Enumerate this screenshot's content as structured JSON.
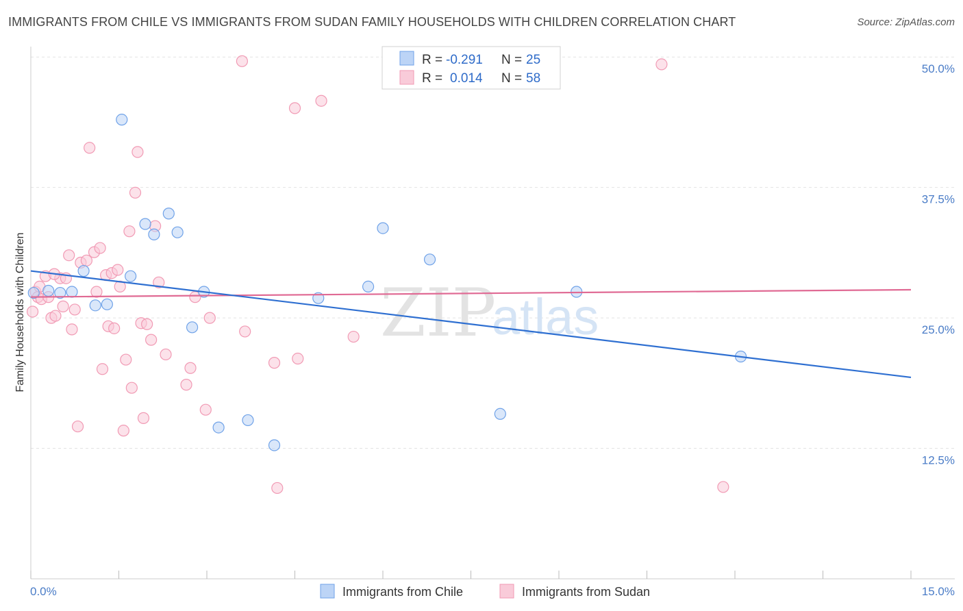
{
  "header": {
    "title": "IMMIGRANTS FROM CHILE VS IMMIGRANTS FROM SUDAN FAMILY HOUSEHOLDS WITH CHILDREN CORRELATION CHART",
    "source": "Source: ZipAtlas.com"
  },
  "watermark": {
    "zip": "ZIP",
    "atlas": "atlas"
  },
  "chart_data": {
    "type": "scatter",
    "title": "IMMIGRANTS FROM CHILE VS IMMIGRANTS FROM SUDAN FAMILY HOUSEHOLDS WITH CHILDREN CORRELATION CHART",
    "xlabel": "",
    "ylabel": "Family Households with Children",
    "xlim": [
      0,
      15
    ],
    "ylim": [
      0,
      51
    ],
    "x_tick_labels": [
      "0.0%",
      "15.0%"
    ],
    "y_ticks": [
      12.5,
      25.0,
      37.5,
      50.0
    ],
    "y_tick_labels": [
      "12.5%",
      "25.0%",
      "37.5%",
      "50.0%"
    ],
    "grid": "horizontal dashed",
    "legend_position": "top-center",
    "colors": {
      "chile": "#6fa2e8",
      "sudan": "#f19ab4",
      "chile_line": "#2e6fd1",
      "sudan_line": "#e06a94"
    },
    "stats": [
      {
        "r_label": "R = ",
        "r": "-0.291",
        "n_label": "N = ",
        "n": "25"
      },
      {
        "r_label": "R = ",
        "r": "0.014",
        "n_label": "N = ",
        "n": "58"
      }
    ],
    "series": [
      {
        "name": "Immigrants from Chile",
        "trend": {
          "x": [
            0,
            15
          ],
          "y": [
            29.5,
            19.3
          ]
        },
        "points": [
          [
            0.05,
            27.4
          ],
          [
            0.3,
            27.6
          ],
          [
            0.5,
            27.4
          ],
          [
            0.7,
            27.5
          ],
          [
            0.9,
            29.5
          ],
          [
            1.1,
            26.2
          ],
          [
            1.3,
            26.3
          ],
          [
            1.55,
            44.0
          ],
          [
            1.7,
            29.0
          ],
          [
            1.95,
            34.0
          ],
          [
            2.1,
            33.0
          ],
          [
            2.35,
            35.0
          ],
          [
            2.5,
            33.2
          ],
          [
            2.75,
            24.1
          ],
          [
            2.95,
            27.5
          ],
          [
            3.2,
            14.5
          ],
          [
            3.7,
            15.2
          ],
          [
            4.15,
            12.8
          ],
          [
            4.9,
            26.9
          ],
          [
            5.75,
            28.0
          ],
          [
            6.0,
            33.6
          ],
          [
            6.8,
            30.6
          ],
          [
            8.0,
            15.8
          ],
          [
            9.3,
            27.5
          ],
          [
            12.1,
            21.3
          ]
        ]
      },
      {
        "name": "Immigrants from Sudan",
        "trend": {
          "x": [
            0,
            15
          ],
          "y": [
            27.0,
            27.7
          ]
        },
        "points": [
          [
            0.03,
            25.6
          ],
          [
            0.08,
            27.5
          ],
          [
            0.12,
            27.0
          ],
          [
            0.18,
            26.8
          ],
          [
            0.25,
            29.0
          ],
          [
            0.3,
            27.0
          ],
          [
            0.35,
            25.0
          ],
          [
            0.42,
            25.2
          ],
          [
            0.5,
            28.8
          ],
          [
            0.55,
            26.1
          ],
          [
            0.6,
            28.8
          ],
          [
            0.65,
            31.0
          ],
          [
            0.7,
            23.9
          ],
          [
            0.75,
            25.8
          ],
          [
            0.8,
            14.6
          ],
          [
            0.85,
            30.3
          ],
          [
            0.95,
            30.5
          ],
          [
            1.0,
            41.3
          ],
          [
            1.08,
            31.3
          ],
          [
            1.12,
            27.5
          ],
          [
            1.18,
            31.7
          ],
          [
            1.22,
            20.1
          ],
          [
            1.28,
            29.1
          ],
          [
            1.32,
            24.2
          ],
          [
            1.38,
            29.3
          ],
          [
            1.42,
            24.0
          ],
          [
            1.48,
            29.6
          ],
          [
            1.52,
            28.0
          ],
          [
            1.58,
            14.2
          ],
          [
            1.62,
            21.0
          ],
          [
            1.68,
            33.3
          ],
          [
            1.72,
            18.3
          ],
          [
            1.78,
            37.0
          ],
          [
            1.82,
            40.9
          ],
          [
            1.88,
            24.5
          ],
          [
            1.92,
            15.4
          ],
          [
            1.98,
            24.4
          ],
          [
            2.05,
            22.9
          ],
          [
            2.12,
            33.8
          ],
          [
            2.18,
            28.4
          ],
          [
            2.3,
            21.5
          ],
          [
            2.65,
            18.6
          ],
          [
            2.72,
            20.2
          ],
          [
            2.8,
            27.0
          ],
          [
            2.98,
            16.2
          ],
          [
            3.05,
            25.0
          ],
          [
            3.6,
            49.6
          ],
          [
            3.65,
            23.7
          ],
          [
            4.15,
            20.7
          ],
          [
            4.2,
            8.7
          ],
          [
            4.5,
            45.1
          ],
          [
            4.55,
            21.1
          ],
          [
            4.95,
            45.8
          ],
          [
            5.5,
            23.2
          ],
          [
            10.75,
            49.3
          ],
          [
            11.8,
            8.8
          ],
          [
            0.15,
            28.0
          ],
          [
            0.4,
            29.2
          ]
        ]
      }
    ]
  }
}
